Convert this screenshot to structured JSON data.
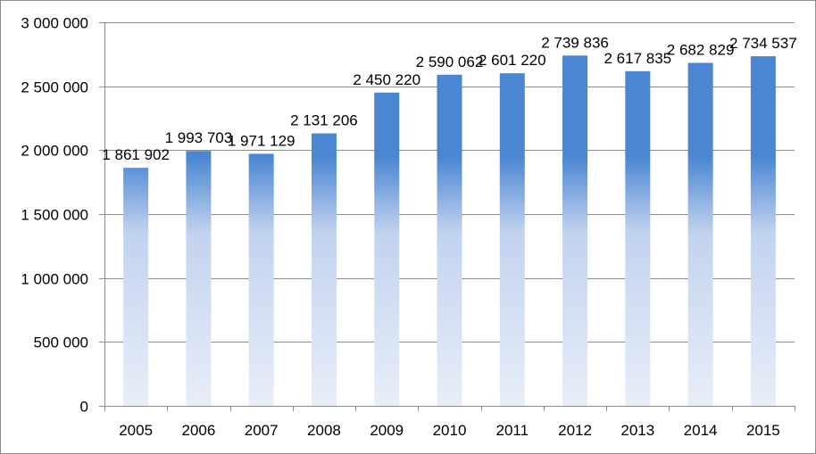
{
  "chart_data": {
    "type": "bar",
    "categories": [
      "2005",
      "2006",
      "2007",
      "2008",
      "2009",
      "2010",
      "2011",
      "2012",
      "2013",
      "2014",
      "2015"
    ],
    "values": [
      1861902,
      1993703,
      1971129,
      2131206,
      2450220,
      2590062,
      2601220,
      2739836,
      2617835,
      2682829,
      2734537
    ],
    "data_labels": [
      "1 861 902",
      "1 993 703",
      "1 971 129",
      "2 131 206",
      "2 450 220",
      "2 590 062",
      "2 601 220",
      "2 739 836",
      "2 617 835",
      "2 682 829",
      "2 734 537"
    ],
    "y_ticks": [
      0,
      500000,
      1000000,
      1500000,
      2000000,
      2500000,
      3000000
    ],
    "y_tick_labels": [
      "0",
      "500 000",
      "1 000 000",
      "1 500 000",
      "2 000 000",
      "2 500 000",
      "3 000 000"
    ],
    "ylim": [
      0,
      3000000
    ],
    "grid": true,
    "legend": "none",
    "colors": {
      "bar_top": "#4a86d2",
      "bar_bottom": "#e8eef9",
      "grid": "#8c8c8c",
      "axis": "#8c8c8c"
    }
  }
}
